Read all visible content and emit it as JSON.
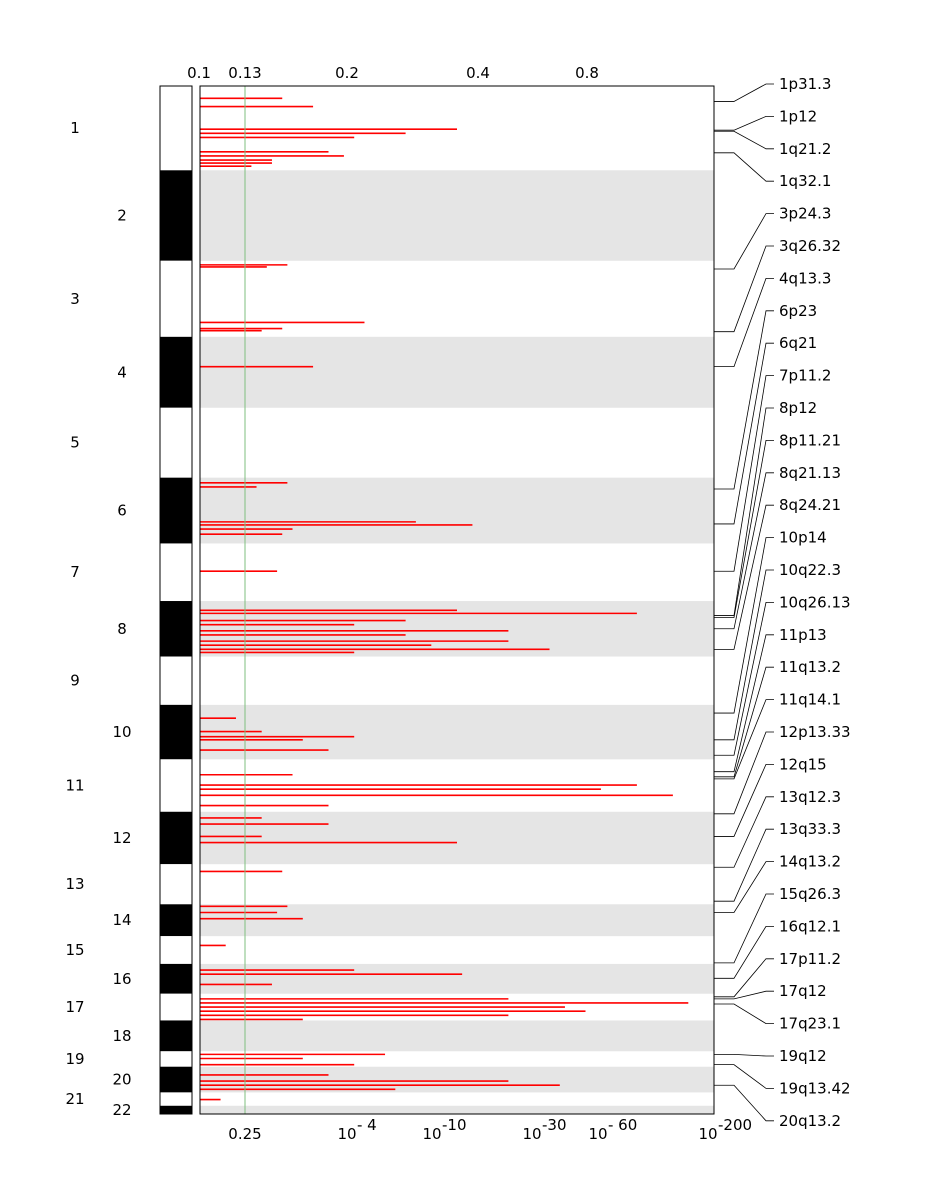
{
  "chart_data": {
    "type": "bar",
    "title": "",
    "orientation": "horizontal",
    "top_axis": {
      "labels": [
        "0.1",
        "0.13",
        "0.2",
        "0.4",
        "0.8"
      ],
      "values": [
        0.1,
        0.13,
        0.2,
        0.4,
        0.8
      ]
    },
    "bottom_axis": {
      "labels": [
        "0.25",
        "10^-4",
        "10^-10",
        "10^-30",
        "10^-60",
        "10^-200"
      ],
      "base": [
        "0.25",
        "10",
        "10",
        "10",
        "10",
        "10"
      ],
      "exponents": [
        "",
        "- 4",
        "-10",
        "-30",
        "- 60",
        "-200"
      ],
      "log10_q": [
        0.602,
        4,
        10,
        30,
        60,
        200
      ]
    },
    "threshold": {
      "value": 0.13,
      "label": "0.13",
      "color": "#7fbf7f"
    },
    "chromosomes": [
      {
        "id": "1",
        "label": "1",
        "start": 0.0,
        "end": 0.082,
        "color": "white"
      },
      {
        "id": "2",
        "label": "2",
        "start": 0.082,
        "end": 0.17,
        "color": "black"
      },
      {
        "id": "3",
        "label": "3",
        "start": 0.17,
        "end": 0.244,
        "color": "white"
      },
      {
        "id": "4",
        "label": "4",
        "start": 0.244,
        "end": 0.313,
        "color": "black"
      },
      {
        "id": "5",
        "label": "5",
        "start": 0.313,
        "end": 0.381,
        "color": "white"
      },
      {
        "id": "6",
        "label": "6",
        "start": 0.381,
        "end": 0.445,
        "color": "black"
      },
      {
        "id": "7",
        "label": "7",
        "start": 0.445,
        "end": 0.501,
        "color": "white"
      },
      {
        "id": "8",
        "label": "8",
        "start": 0.501,
        "end": 0.555,
        "color": "black"
      },
      {
        "id": "9",
        "label": "9",
        "start": 0.555,
        "end": 0.602,
        "color": "white"
      },
      {
        "id": "10",
        "label": "10",
        "start": 0.602,
        "end": 0.655,
        "color": "black"
      },
      {
        "id": "11",
        "label": "11",
        "start": 0.655,
        "end": 0.706,
        "color": "white"
      },
      {
        "id": "12",
        "label": "12",
        "start": 0.706,
        "end": 0.757,
        "color": "black"
      },
      {
        "id": "13",
        "label": "13",
        "start": 0.757,
        "end": 0.796,
        "color": "white"
      },
      {
        "id": "14",
        "label": "14",
        "start": 0.796,
        "end": 0.827,
        "color": "black"
      },
      {
        "id": "15",
        "label": "15",
        "start": 0.827,
        "end": 0.854,
        "color": "white"
      },
      {
        "id": "16",
        "label": "16",
        "start": 0.854,
        "end": 0.883,
        "color": "black"
      },
      {
        "id": "17",
        "label": "17",
        "start": 0.883,
        "end": 0.909,
        "color": "white"
      },
      {
        "id": "18",
        "label": "18",
        "start": 0.909,
        "end": 0.939,
        "color": "black"
      },
      {
        "id": "19",
        "label": "19",
        "start": 0.939,
        "end": 0.954,
        "color": "white"
      },
      {
        "id": "20",
        "label": "20",
        "start": 0.954,
        "end": 0.979,
        "color": "black"
      },
      {
        "id": "21",
        "label": "21",
        "start": 0.979,
        "end": 0.992,
        "color": "white"
      },
      {
        "id": "22",
        "label": "22",
        "start": 0.992,
        "end": 1.0,
        "color": "black"
      }
    ],
    "peaks": [
      {
        "label": "1p31.3",
        "position": 0.015
      },
      {
        "label": "1p12",
        "position": 0.043
      },
      {
        "label": "1q21.2",
        "position": 0.044
      },
      {
        "label": "1q32.1",
        "position": 0.065
      },
      {
        "label": "3p24.3",
        "position": 0.178
      },
      {
        "label": "3q26.32",
        "position": 0.239
      },
      {
        "label": "4q13.3",
        "position": 0.273
      },
      {
        "label": "6p23",
        "position": 0.392
      },
      {
        "label": "6q21",
        "position": 0.426
      },
      {
        "label": "7p11.2",
        "position": 0.472
      },
      {
        "label": "8p12",
        "position": 0.515
      },
      {
        "label": "8p11.21",
        "position": 0.517
      },
      {
        "label": "8q21.13",
        "position": 0.528
      },
      {
        "label": "8q24.21",
        "position": 0.548
      },
      {
        "label": "10p14",
        "position": 0.61
      },
      {
        "label": "10q22.3",
        "position": 0.636
      },
      {
        "label": "10q26.13",
        "position": 0.651
      },
      {
        "label": "11p13",
        "position": 0.667
      },
      {
        "label": "11q13.2",
        "position": 0.672
      },
      {
        "label": "11q14.1",
        "position": 0.674
      },
      {
        "label": "12p13.33",
        "position": 0.708
      },
      {
        "label": "12q15",
        "position": 0.73
      },
      {
        "label": "13q12.3",
        "position": 0.76
      },
      {
        "label": "13q33.3",
        "position": 0.793
      },
      {
        "label": "14q13.2",
        "position": 0.804
      },
      {
        "label": "15q26.3",
        "position": 0.853
      },
      {
        "label": "16q12.1",
        "position": 0.868
      },
      {
        "label": "17p11.2",
        "position": 0.886
      },
      {
        "label": "17q12",
        "position": 0.888
      },
      {
        "label": "17q23.1",
        "position": 0.893
      },
      {
        "label": "19q12",
        "position": 0.942
      },
      {
        "label": "19q13.42",
        "position": 0.952
      },
      {
        "label": "20q13.2",
        "position": 0.972
      }
    ],
    "segments": [
      {
        "y": 0.012,
        "g": 0.16
      },
      {
        "y": 0.02,
        "g": 0.22
      },
      {
        "y": 0.042,
        "g": 0.5
      },
      {
        "y": 0.046,
        "g": 0.4
      },
      {
        "y": 0.05,
        "g": 0.3
      },
      {
        "y": 0.064,
        "g": 0.25
      },
      {
        "y": 0.068,
        "g": 0.28
      },
      {
        "y": 0.072,
        "g": 0.14
      },
      {
        "y": 0.075,
        "g": 0.14
      },
      {
        "y": 0.078,
        "g": 0.1
      },
      {
        "y": 0.174,
        "g": 0.17
      },
      {
        "y": 0.176,
        "g": 0.13
      },
      {
        "y": 0.23,
        "g": 0.32
      },
      {
        "y": 0.236,
        "g": 0.16
      },
      {
        "y": 0.238,
        "g": 0.12
      },
      {
        "y": 0.273,
        "g": 0.22
      },
      {
        "y": 0.386,
        "g": 0.17
      },
      {
        "y": 0.39,
        "g": 0.11
      },
      {
        "y": 0.424,
        "g": 0.42
      },
      {
        "y": 0.427,
        "g": 0.53
      },
      {
        "y": 0.431,
        "g": 0.18
      },
      {
        "y": 0.436,
        "g": 0.16
      },
      {
        "y": 0.472,
        "g": 0.15
      },
      {
        "y": 0.51,
        "g": 0.5
      },
      {
        "y": 0.513,
        "g": 0.85
      },
      {
        "y": 0.52,
        "g": 0.4
      },
      {
        "y": 0.524,
        "g": 0.3
      },
      {
        "y": 0.53,
        "g": 0.6
      },
      {
        "y": 0.534,
        "g": 0.4
      },
      {
        "y": 0.54,
        "g": 0.6
      },
      {
        "y": 0.544,
        "g": 0.45
      },
      {
        "y": 0.548,
        "g": 0.68
      },
      {
        "y": 0.551,
        "g": 0.3
      },
      {
        "y": 0.615,
        "g": 0.07
      },
      {
        "y": 0.628,
        "g": 0.12
      },
      {
        "y": 0.633,
        "g": 0.3
      },
      {
        "y": 0.636,
        "g": 0.2
      },
      {
        "y": 0.646,
        "g": 0.25
      },
      {
        "y": 0.67,
        "g": 0.18
      },
      {
        "y": 0.68,
        "g": 0.85
      },
      {
        "y": 0.684,
        "g": 0.78
      },
      {
        "y": 0.69,
        "g": 0.92
      },
      {
        "y": 0.7,
        "g": 0.25
      },
      {
        "y": 0.712,
        "g": 0.12
      },
      {
        "y": 0.718,
        "g": 0.25
      },
      {
        "y": 0.73,
        "g": 0.12
      },
      {
        "y": 0.736,
        "g": 0.5
      },
      {
        "y": 0.764,
        "g": 0.16
      },
      {
        "y": 0.798,
        "g": 0.17
      },
      {
        "y": 0.804,
        "g": 0.15
      },
      {
        "y": 0.81,
        "g": 0.2
      },
      {
        "y": 0.836,
        "g": 0.05
      },
      {
        "y": 0.86,
        "g": 0.3
      },
      {
        "y": 0.864,
        "g": 0.51
      },
      {
        "y": 0.874,
        "g": 0.14
      },
      {
        "y": 0.888,
        "g": 0.6
      },
      {
        "y": 0.892,
        "g": 0.95
      },
      {
        "y": 0.896,
        "g": 0.71
      },
      {
        "y": 0.9,
        "g": 0.75
      },
      {
        "y": 0.904,
        "g": 0.6
      },
      {
        "y": 0.908,
        "g": 0.2
      },
      {
        "y": 0.942,
        "g": 0.36
      },
      {
        "y": 0.946,
        "g": 0.2
      },
      {
        "y": 0.952,
        "g": 0.3
      },
      {
        "y": 0.962,
        "g": 0.25
      },
      {
        "y": 0.968,
        "g": 0.6
      },
      {
        "y": 0.972,
        "g": 0.7
      },
      {
        "y": 0.976,
        "g": 0.38
      },
      {
        "y": 0.986,
        "g": 0.04
      }
    ],
    "colors": {
      "segment": "#ff0000",
      "band_shade": "#e5e5e5",
      "threshold_line": "#7fbf7f",
      "axis": "#000000"
    }
  }
}
